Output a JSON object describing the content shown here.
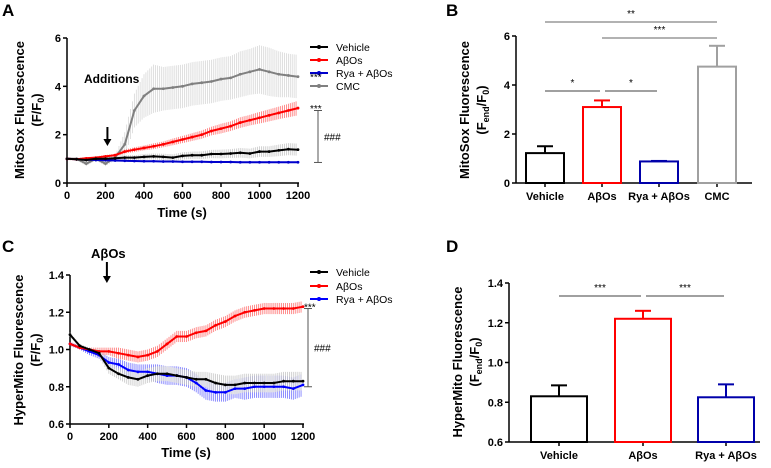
{
  "chart_data": [
    {
      "panel": "A",
      "type": "line",
      "xlabel": "Time  (s)",
      "ylabel": "MitoSox Fluorescence",
      "ylabel_parts": [
        "(F/F",
        "0",
        ")"
      ],
      "xlim": [
        0,
        1200
      ],
      "ylim": [
        0,
        6
      ],
      "xticks": [
        0,
        200,
        400,
        600,
        800,
        1000,
        1200
      ],
      "yticks": [
        0,
        2,
        4,
        6
      ],
      "legend_position": "right",
      "annotation_arrow": "Additions",
      "arrow_x": 210,
      "x": [
        0,
        50,
        100,
        150,
        200,
        250,
        300,
        350,
        400,
        450,
        500,
        550,
        600,
        650,
        700,
        750,
        800,
        850,
        900,
        950,
        1000,
        1050,
        1100,
        1150,
        1200
      ],
      "series": [
        {
          "name": "Vehicle",
          "color": "#000000",
          "values": [
            1.0,
            0.98,
            0.95,
            1.0,
            1.0,
            1.02,
            1.05,
            1.05,
            1.08,
            1.1,
            1.08,
            1.05,
            1.12,
            1.15,
            1.15,
            1.2,
            1.2,
            1.22,
            1.25,
            1.22,
            1.3,
            1.3,
            1.35,
            1.4,
            1.38
          ],
          "error": [
            0.05,
            0.05,
            0.06,
            0.06,
            0.07,
            0.08,
            0.1,
            0.1,
            0.12,
            0.12,
            0.13,
            0.14,
            0.15,
            0.15,
            0.16,
            0.17,
            0.18,
            0.18,
            0.2,
            0.2,
            0.22,
            0.22,
            0.24,
            0.25,
            0.25
          ]
        },
        {
          "name": "AβOs",
          "color": "#ff0000",
          "values": [
            1.0,
            0.98,
            1.02,
            1.05,
            1.1,
            1.15,
            1.3,
            1.38,
            1.45,
            1.52,
            1.6,
            1.7,
            1.8,
            1.9,
            2.0,
            2.15,
            2.25,
            2.35,
            2.5,
            2.6,
            2.7,
            2.8,
            2.9,
            3.0,
            3.1
          ],
          "error": [
            0.05,
            0.05,
            0.05,
            0.05,
            0.06,
            0.06,
            0.08,
            0.1,
            0.1,
            0.12,
            0.12,
            0.14,
            0.15,
            0.16,
            0.17,
            0.18,
            0.2,
            0.2,
            0.22,
            0.22,
            0.24,
            0.25,
            0.26,
            0.28,
            0.3
          ]
        },
        {
          "name": "Rya + AβOs",
          "color": "#0000cc",
          "values": [
            1.0,
            0.98,
            0.96,
            0.95,
            0.94,
            0.93,
            0.92,
            0.91,
            0.9,
            0.9,
            0.89,
            0.89,
            0.88,
            0.88,
            0.88,
            0.87,
            0.87,
            0.87,
            0.86,
            0.86,
            0.86,
            0.86,
            0.86,
            0.86,
            0.86
          ],
          "error": [
            0.02,
            0.02,
            0.02,
            0.02,
            0.02,
            0.02,
            0.02,
            0.02,
            0.02,
            0.02,
            0.02,
            0.02,
            0.02,
            0.02,
            0.02,
            0.02,
            0.02,
            0.02,
            0.02,
            0.02,
            0.02,
            0.02,
            0.02,
            0.02,
            0.02
          ]
        },
        {
          "name": "CMC",
          "color": "#808080",
          "values": [
            1.0,
            1.0,
            0.8,
            1.0,
            0.8,
            1.05,
            1.6,
            3.0,
            3.6,
            3.9,
            3.9,
            3.95,
            4.0,
            4.1,
            4.15,
            4.2,
            4.3,
            4.35,
            4.5,
            4.6,
            4.7,
            4.6,
            4.5,
            4.45,
            4.4
          ],
          "error": [
            0.05,
            0.05,
            0.1,
            0.05,
            0.1,
            0.1,
            0.5,
            0.7,
            0.9,
            1.0,
            0.9,
            0.9,
            0.9,
            0.9,
            0.9,
            0.9,
            0.9,
            0.9,
            0.95,
            0.95,
            1.0,
            1.0,
            0.95,
            0.9,
            0.9
          ]
        }
      ],
      "significance": [
        {
          "text": "***",
          "series": "CMC"
        },
        {
          "text": "***",
          "series": "AβOs"
        },
        {
          "text": "###",
          "bracket": [
            0.85,
            3.0
          ]
        }
      ]
    },
    {
      "panel": "B",
      "type": "bar",
      "ylabel": "MitoSox Fluorescence",
      "ylabel_parts": [
        "(F",
        "end",
        "/F",
        "0",
        ")"
      ],
      "ylim": [
        0,
        6
      ],
      "yticks": [
        0,
        2,
        4,
        6
      ],
      "categories": [
        "Vehicle",
        "AβOs",
        "Rya + AβOs",
        "CMC"
      ],
      "values": [
        1.22,
        3.1,
        0.88,
        4.75
      ],
      "error": [
        0.28,
        0.27,
        0.02,
        0.85
      ],
      "colors": [
        "#000000",
        "#ff0000",
        "#0000aa",
        "#a0a0a0"
      ],
      "significance": [
        {
          "text": "*",
          "between": [
            0,
            1
          ]
        },
        {
          "text": "*",
          "between": [
            1,
            2
          ]
        },
        {
          "text": "***",
          "between": [
            1,
            3
          ]
        },
        {
          "text": "**",
          "between": [
            0,
            3
          ]
        }
      ]
    },
    {
      "panel": "C",
      "type": "line",
      "xlabel": "Time (s)",
      "ylabel": "HyperMito Fluorescence",
      "ylabel_parts": [
        "(F/F",
        "0",
        ")"
      ],
      "xlim": [
        0,
        1200
      ],
      "ylim": [
        0.6,
        1.4
      ],
      "xticks": [
        0,
        200,
        400,
        600,
        800,
        1000,
        1200
      ],
      "yticks": [
        0.6,
        0.8,
        1.0,
        1.2,
        1.4
      ],
      "legend_position": "right",
      "annotation_arrow": "AβOs",
      "arrow_x": 190,
      "x": [
        0,
        50,
        100,
        150,
        200,
        250,
        300,
        350,
        400,
        450,
        500,
        550,
        600,
        650,
        700,
        750,
        800,
        850,
        900,
        950,
        1000,
        1050,
        1100,
        1150,
        1200
      ],
      "series": [
        {
          "name": "Vehicle",
          "color": "#000000",
          "values": [
            1.08,
            1.02,
            1.0,
            0.98,
            0.9,
            0.87,
            0.85,
            0.84,
            0.86,
            0.87,
            0.87,
            0.86,
            0.85,
            0.84,
            0.84,
            0.82,
            0.81,
            0.81,
            0.82,
            0.82,
            0.82,
            0.82,
            0.83,
            0.83,
            0.83
          ],
          "error": [
            0.01,
            0.01,
            0.01,
            0.02,
            0.03,
            0.03,
            0.04,
            0.04,
            0.04,
            0.04,
            0.04,
            0.04,
            0.04,
            0.04,
            0.04,
            0.05,
            0.05,
            0.05,
            0.05,
            0.05,
            0.05,
            0.05,
            0.05,
            0.05,
            0.05
          ]
        },
        {
          "name": "AβOs",
          "color": "#ff0000",
          "values": [
            1.03,
            1.01,
            1.0,
            0.99,
            0.99,
            0.98,
            0.97,
            0.96,
            0.97,
            0.99,
            1.03,
            1.07,
            1.07,
            1.09,
            1.1,
            1.13,
            1.15,
            1.18,
            1.2,
            1.21,
            1.22,
            1.22,
            1.22,
            1.22,
            1.23
          ],
          "error": [
            0.01,
            0.01,
            0.01,
            0.02,
            0.02,
            0.03,
            0.03,
            0.03,
            0.03,
            0.03,
            0.03,
            0.03,
            0.03,
            0.03,
            0.03,
            0.03,
            0.03,
            0.03,
            0.03,
            0.03,
            0.03,
            0.03,
            0.03,
            0.03,
            0.03
          ]
        },
        {
          "name": "Rya + AβOs",
          "color": "#0000ff",
          "values": [
            1.03,
            1.01,
            0.99,
            0.97,
            0.93,
            0.92,
            0.89,
            0.88,
            0.88,
            0.87,
            0.86,
            0.86,
            0.85,
            0.82,
            0.78,
            0.77,
            0.77,
            0.79,
            0.79,
            0.8,
            0.8,
            0.8,
            0.8,
            0.79,
            0.81
          ],
          "error": [
            0.01,
            0.01,
            0.02,
            0.02,
            0.03,
            0.03,
            0.04,
            0.04,
            0.04,
            0.05,
            0.05,
            0.05,
            0.05,
            0.05,
            0.05,
            0.05,
            0.05,
            0.05,
            0.06,
            0.06,
            0.06,
            0.06,
            0.06,
            0.06,
            0.06
          ]
        }
      ],
      "significance": [
        {
          "text": "***",
          "series": "AβOs"
        },
        {
          "text": "###",
          "bracket": [
            0.8,
            1.22
          ]
        }
      ]
    },
    {
      "panel": "D",
      "type": "bar",
      "ylabel": "HyperMito Fluorescence",
      "ylabel_parts": [
        "(F",
        "end",
        "/F",
        "0",
        ")"
      ],
      "ylim": [
        0.6,
        1.4
      ],
      "yticks": [
        0.6,
        0.8,
        1.0,
        1.2,
        1.4
      ],
      "categories": [
        "Vehicle",
        "AβOs",
        "Rya + AβOs"
      ],
      "values": [
        0.83,
        1.22,
        0.825
      ],
      "error": [
        0.055,
        0.04,
        0.065
      ],
      "colors": [
        "#000000",
        "#ff0000",
        "#0000aa"
      ],
      "significance": [
        {
          "text": "***",
          "between": [
            0,
            1
          ]
        },
        {
          "text": "***",
          "between": [
            1,
            2
          ]
        }
      ]
    }
  ]
}
